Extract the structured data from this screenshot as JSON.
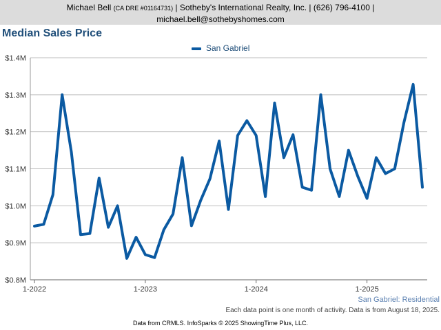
{
  "header": {
    "line1_name": "Michael Bell",
    "line1_dre": "(CA DRE #01164731)",
    "line1_rest": "| Sotheby's International Realty, Inc. | (626) 796-4100 |",
    "line2": "michael.bell@sothebyshomes.com"
  },
  "subtitle": "San Gabriel: Residential",
  "note": "Each data point is one month of activity. Data is from August 18, 2025.",
  "footer": "Data from CRMLS. InfoSparks © 2025 ShowingTime Plus, LLC.",
  "colors": {
    "series": "#0b5aa2",
    "title": "#1f4e79"
  },
  "chart_data": {
    "type": "line",
    "title": "Median Sales Price",
    "legend_position": "top-center",
    "grid": true,
    "ylim": [
      800000,
      1400000
    ],
    "y_ticks": [
      {
        "value": 800000,
        "label": "$0.8M"
      },
      {
        "value": 900000,
        "label": "$0.9M"
      },
      {
        "value": 1000000,
        "label": "$1.0M"
      },
      {
        "value": 1100000,
        "label": "$1.1M"
      },
      {
        "value": 1200000,
        "label": "$1.2M"
      },
      {
        "value": 1300000,
        "label": "$1.3M"
      },
      {
        "value": 1400000,
        "label": "$1.4M"
      }
    ],
    "x_ticks": [
      {
        "index": 0,
        "label": "1-2022"
      },
      {
        "index": 12,
        "label": "1-2023"
      },
      {
        "index": 24,
        "label": "1-2024"
      },
      {
        "index": 36,
        "label": "1-2025"
      }
    ],
    "x": [
      "2022-01",
      "2022-02",
      "2022-03",
      "2022-04",
      "2022-05",
      "2022-06",
      "2022-07",
      "2022-08",
      "2022-09",
      "2022-10",
      "2022-11",
      "2022-12",
      "2023-01",
      "2023-02",
      "2023-03",
      "2023-04",
      "2023-05",
      "2023-06",
      "2023-07",
      "2023-08",
      "2023-09",
      "2023-10",
      "2023-11",
      "2023-12",
      "2024-01",
      "2024-02",
      "2024-03",
      "2024-04",
      "2024-05",
      "2024-06",
      "2024-07",
      "2024-08",
      "2024-09",
      "2024-10",
      "2024-11",
      "2024-12",
      "2025-01",
      "2025-02",
      "2025-03",
      "2025-04",
      "2025-05",
      "2025-06",
      "2025-07"
    ],
    "series": [
      {
        "name": "San Gabriel",
        "values": [
          945000,
          950000,
          1030000,
          1300000,
          1145000,
          922000,
          925000,
          1075000,
          942000,
          1000000,
          858000,
          915000,
          868000,
          860000,
          935000,
          978000,
          1130000,
          946000,
          1015000,
          1073000,
          1175000,
          990000,
          1190000,
          1230000,
          1190000,
          1025000,
          1278000,
          1130000,
          1192000,
          1050000,
          1042000,
          1300000,
          1100000,
          1025000,
          1150000,
          1080000,
          1020000,
          1130000,
          1087000,
          1100000,
          1225000,
          1328000,
          1050000
        ]
      }
    ]
  }
}
